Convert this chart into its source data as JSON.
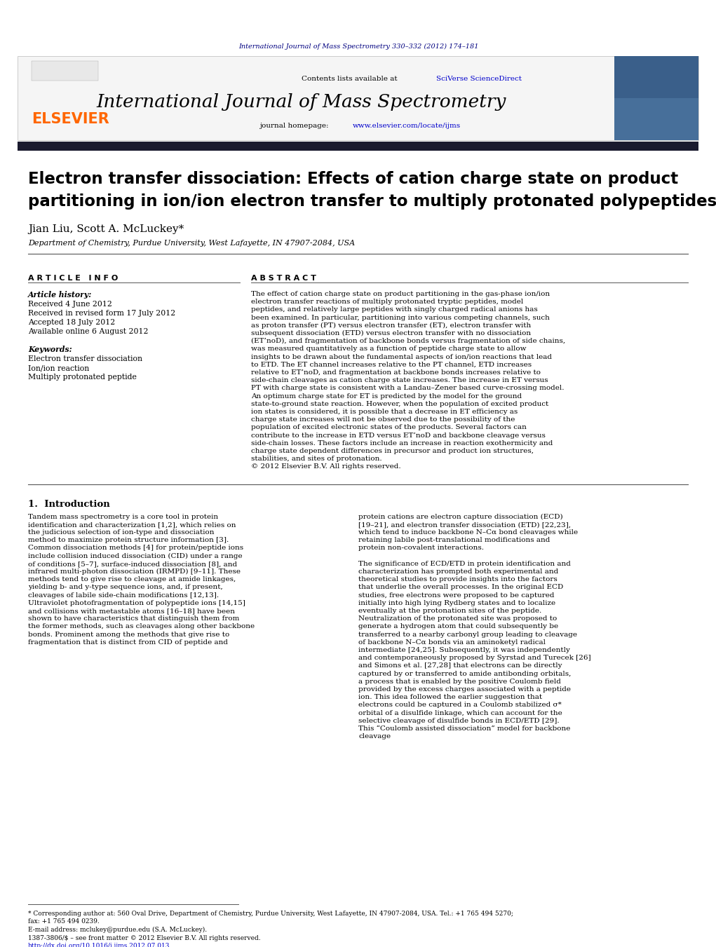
{
  "journal_ref": "International Journal of Mass Spectrometry 330–332 (2012) 174–181",
  "journal_name": "International Journal of Mass Spectrometry",
  "elsevier_text": "ELSEVIER",
  "title": "Electron transfer dissociation: Effects of cation charge state on product\npartitioning in ion/ion electron transfer to multiply protonated polypeptides",
  "authors": "Jian Liu, Scott A. McLuckey*",
  "affiliation": "Department of Chemistry, Purdue University, West Lafayette, IN 47907-2084, USA",
  "article_info_header": "A R T I C L E   I N F O",
  "abstract_header": "A B S T R A C T",
  "article_history_label": "Article history:",
  "received": "Received 4 June 2012",
  "revised": "Received in revised form 17 July 2012",
  "accepted": "Accepted 18 July 2012",
  "available": "Available online 6 August 2012",
  "keywords_label": "Keywords:",
  "keywords": [
    "Electron transfer dissociation",
    "Ion/ion reaction",
    "Multiply protonated peptide"
  ],
  "abstract": "The effect of cation charge state on product partitioning in the gas-phase ion/ion electron transfer reactions of multiply protonated tryptic peptides, model peptides, and relatively large peptides with singly charged radical anions has been examined. In particular, partitioning into various competing channels, such as proton transfer (PT) versus electron transfer (ET), electron transfer with subsequent dissociation (ETD) versus electron transfer with no dissociation (ET’noD), and fragmentation of backbone bonds versus fragmentation of side chains, was measured quantitatively as a function of peptide charge state to allow insights to be drawn about the fundamental aspects of ion/ion reactions that lead to ETD. The ET channel increases relative to the PT channel, ETD increases relative to ET’noD, and fragmentation at backbone bonds increases relative to side-chain cleavages as cation charge state increases. The increase in ET versus PT with charge state is consistent with a Landau–Zener based curve-crossing model. An optimum charge state for ET is predicted by the model for the ground state-to-ground state reaction. However, when the population of excited product ion states is considered, it is possible that a decrease in ET efficiency as charge state increases will not be observed due to the possibility of the population of excited electronic states of the products. Several factors can contribute to the increase in ETD versus ET’noD and backbone cleavage versus side-chain losses. These factors include an increase in reaction exothermicity and charge state dependent differences in precursor and product ion structures, stabilities, and sites of protonation.\n© 2012 Elsevier B.V. All rights reserved.",
  "intro_header": "1.  Introduction",
  "intro_col1": "Tandem mass spectrometry is a core tool in protein identification and characterization [1,2], which relies on the judicious selection of ion-type and dissociation method to maximize protein structure information [3]. Common dissociation methods [4] for protein/peptide ions include collision induced dissociation (CID) under a range of conditions [5–7], surface-induced dissociation [8], and infrared multi-photon dissociation (IRMPD) [9–11]. These methods tend to give rise to cleavage at amide linkages, yielding b- and y-type sequence ions, and, if present, cleavages of labile side-chain modifications [12,13]. Ultraviolet photofragmentation of polypeptide ions [14,15] and collisions with metastable atoms [16–18] have been shown to have characteristics that distinguish them from the former methods, such as cleavages along other backbone bonds. Prominent among the methods that give rise to fragmentation that is distinct from CID of peptide and",
  "intro_col2": "protein cations are electron capture dissociation (ECD) [19–21], and electron transfer dissociation (ETD) [22,23], which tend to induce backbone N–Cα bond cleavages while retaining labile post-translational modifications and protein non-covalent interactions.\n\nThe significance of ECD/ETD in protein identification and characterization has prompted both experimental and theoretical studies to provide insights into the factors that underlie the overall processes. In the original ECD studies, free electrons were proposed to be captured initially into high lying Rydberg states and to localize eventually at the protonation sites of the peptide. Neutralization of the protonated site was proposed to generate a hydrogen atom that could subsequently be transferred to a nearby carbonyl group leading to cleavage of backbone N–Cα bonds via an aminoketyl radical intermediate [24,25]. Subsequently, it was independently and contemporaneously proposed by Syrstad and Turecek [26] and Simons et al. [27,28] that electrons can be directly captured by or transferred to amide antibonding orbitals, a process that is enabled by the positive Coulomb field provided by the excess charges associated with a peptide ion. This idea followed the earlier suggestion that electrons could be captured in a Coulomb stabilized σ* orbital of a disulfide linkage, which can account for the selective cleavage of disulfide bonds in ECD/ETD [29]. This “Coulomb assisted dissociation” model for backbone cleavage",
  "footnote1": "* Corresponding author at: 560 Oval Drive, Department of Chemistry, Purdue University, West Lafayette, IN 47907-2084, USA. Tel.: +1 765 494 5270;",
  "footnote1b": "fax: +1 765 494 0239.",
  "footnote2": "E-mail address: mclukey@purdue.edu (S.A. McLuckey).",
  "footnote3": "1387-3806/$ – see front matter © 2012 Elsevier B.V. All rights reserved.",
  "footnote4": "http://dx.doi.org/10.1016/j.ijms.2012.07.013",
  "bg_color": "#ffffff",
  "contents_bg": "#f5f5f5",
  "dark_bar_color": "#1a1a2e",
  "elsevier_orange": "#ff6600",
  "journal_blue": "#000080",
  "link_blue": "#0000cc",
  "text_color": "#000000"
}
